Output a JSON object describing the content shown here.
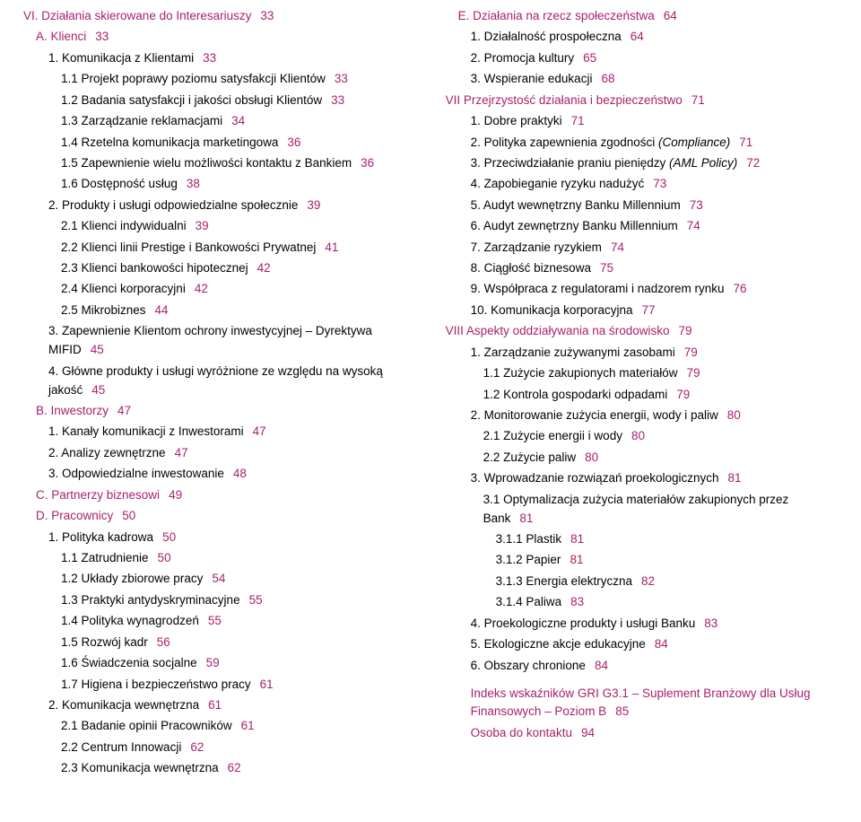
{
  "accentColor": "#a8216f",
  "left": [
    {
      "lvl": 0,
      "accent": true,
      "text": "VI. Działania skierowane do Interesariuszy",
      "page": "33"
    },
    {
      "lvl": 1,
      "accent": true,
      "text": "A. Klienci",
      "page": "33"
    },
    {
      "lvl": 2,
      "text": "1. Komunikacja z Klientami",
      "page": "33"
    },
    {
      "lvl": 3,
      "text": "1.1 Projekt poprawy poziomu satysfakcji Klientów",
      "page": "33"
    },
    {
      "lvl": 3,
      "text": "1.2 Badania satysfakcji i jakości obsługi Klientów",
      "page": "33"
    },
    {
      "lvl": 3,
      "text": "1.3 Zarządzanie reklamacjami",
      "page": "34"
    },
    {
      "lvl": 3,
      "text": "1.4 Rzetelna komunikacja marketingowa",
      "page": "36"
    },
    {
      "lvl": 3,
      "text": "1.5 Zapewnienie wielu możliwości kontaktu z Bankiem",
      "page": "36"
    },
    {
      "lvl": 3,
      "text": "1.6 Dostępność usług",
      "page": "38"
    },
    {
      "lvl": 2,
      "text": "2. Produkty i usługi odpowiedzialne społecznie",
      "page": "39"
    },
    {
      "lvl": 3,
      "text": "2.1 Klienci indywidualni",
      "page": "39"
    },
    {
      "lvl": 3,
      "text": "2.2 Klienci linii Prestige i Bankowości Prywatnej",
      "page": "41"
    },
    {
      "lvl": 3,
      "text": "2.3 Klienci bankowości hipotecznej",
      "page": "42"
    },
    {
      "lvl": 3,
      "text": "2.4 Klienci korporacyjni",
      "page": "42"
    },
    {
      "lvl": 3,
      "text": "2.5 Mikrobiznes",
      "page": "44"
    },
    {
      "lvl": 2,
      "text": "3. Zapewnienie Klientom ochrony inwestycyjnej – Dyrektywa MIFID",
      "page": "45",
      "multiline": true
    },
    {
      "lvl": 2,
      "text": "4. Główne produkty i usługi wyróżnione ze względu na wysoką jakość",
      "page": "45",
      "multiline": true
    },
    {
      "lvl": 1,
      "accent": true,
      "text": "B. Inwestorzy",
      "page": "47"
    },
    {
      "lvl": 2,
      "text": "1. Kanały komunikacji z Inwestorami",
      "page": "47"
    },
    {
      "lvl": 2,
      "text": "2. Analizy zewnętrzne",
      "page": "47"
    },
    {
      "lvl": 2,
      "text": "3. Odpowiedzialne inwestowanie",
      "page": "48"
    },
    {
      "lvl": 1,
      "accent": true,
      "text": "C. Partnerzy biznesowi",
      "page": "49"
    },
    {
      "lvl": 1,
      "accent": true,
      "text": "D. Pracownicy",
      "page": "50"
    },
    {
      "lvl": 2,
      "text": "1. Polityka kadrowa",
      "page": "50"
    },
    {
      "lvl": 3,
      "text": "1.1 Zatrudnienie",
      "page": "50"
    },
    {
      "lvl": 3,
      "text": "1.2 Układy zbiorowe pracy",
      "page": "54"
    },
    {
      "lvl": 3,
      "text": "1.3 Praktyki antydyskryminacyjne",
      "page": "55"
    },
    {
      "lvl": 3,
      "text": "1.4 Polityka wynagrodzeń",
      "page": "55"
    },
    {
      "lvl": 3,
      "text": "1.5 Rozwój kadr",
      "page": "56"
    },
    {
      "lvl": 3,
      "text": "1.6 Świadczenia socjalne",
      "page": "59"
    },
    {
      "lvl": 3,
      "text": "1.7 Higiena i bezpieczeństwo pracy",
      "page": "61"
    },
    {
      "lvl": 2,
      "text": "2. Komunikacja wewnętrzna",
      "page": "61"
    },
    {
      "lvl": 3,
      "text": "2.1 Badanie opinii Pracowników",
      "page": "61"
    },
    {
      "lvl": 3,
      "text": "2.2 Centrum Innowacji",
      "page": "62"
    },
    {
      "lvl": 3,
      "text": "2.3 Komunikacja wewnętrzna",
      "page": "62"
    }
  ],
  "right": [
    {
      "lvl": 1,
      "accent": true,
      "text": "E. Działania na rzecz społeczeństwa",
      "page": "64"
    },
    {
      "lvl": 2,
      "text": "1. Działalność prospołeczna",
      "page": "64"
    },
    {
      "lvl": 2,
      "text": "2. Promocja kultury",
      "page": "65"
    },
    {
      "lvl": 2,
      "text": "3. Wspieranie edukacji",
      "page": "68"
    },
    {
      "lvl": 0,
      "accent": true,
      "text": "VII Przejrzystość działania i bezpieczeństwo",
      "page": "71"
    },
    {
      "lvl": 2,
      "text": "1. Dobre praktyki",
      "page": "71"
    },
    {
      "lvl": 2,
      "text": "2. Polityka zapewnienia zgodności (Compliance)",
      "page": "71",
      "italicPart": "(Compliance)"
    },
    {
      "lvl": 2,
      "text": "3. Przeciwdziałanie praniu pieniędzy (AML Policy)",
      "page": "72",
      "italicPart": "(AML Policy)"
    },
    {
      "lvl": 2,
      "text": "4. Zapobieganie ryzyku nadużyć",
      "page": "73"
    },
    {
      "lvl": 2,
      "text": "5. Audyt wewnętrzny Banku Millennium",
      "page": "73"
    },
    {
      "lvl": 2,
      "text": "6. Audyt zewnętrzny Banku Millennium",
      "page": "74"
    },
    {
      "lvl": 2,
      "text": "7. Zarządzanie ryzykiem",
      "page": "74"
    },
    {
      "lvl": 2,
      "text": "8. Ciągłość biznesowa",
      "page": "75"
    },
    {
      "lvl": 2,
      "text": "9. Współpraca z regulatorami i nadzorem rynku",
      "page": "76"
    },
    {
      "lvl": 2,
      "text": "10. Komunikacja korporacyjna",
      "page": "77"
    },
    {
      "lvl": 0,
      "accent": true,
      "text": "VIII Aspekty oddziaływania na środowisko",
      "page": "79"
    },
    {
      "lvl": 2,
      "text": "1. Zarządzanie zużywanymi zasobami",
      "page": "79"
    },
    {
      "lvl": 3,
      "text": "1.1 Zużycie zakupionych materiałów",
      "page": "79"
    },
    {
      "lvl": 3,
      "text": "1.2 Kontrola gospodarki odpadami",
      "page": "79"
    },
    {
      "lvl": 2,
      "text": "2. Monitorowanie zużycia energii, wody i paliw",
      "page": "80"
    },
    {
      "lvl": 3,
      "text": "2.1 Zużycie energii i wody",
      "page": "80"
    },
    {
      "lvl": 3,
      "text": "2.2 Zużycie paliw",
      "page": "80"
    },
    {
      "lvl": 2,
      "text": "3. Wprowadzanie rozwiązań proekologicznych",
      "page": "81"
    },
    {
      "lvl": 3,
      "text": "3.1 Optymalizacja zużycia materiałów zakupionych przez Bank",
      "page": "81",
      "multiline": true
    },
    {
      "lvl": 4,
      "text": "3.1.1 Plastik",
      "page": "81"
    },
    {
      "lvl": 4,
      "text": "3.1.2 Papier",
      "page": "81"
    },
    {
      "lvl": 4,
      "text": "3.1.3 Energia elektryczna",
      "page": "82"
    },
    {
      "lvl": 4,
      "text": "3.1.4 Paliwa",
      "page": "83"
    },
    {
      "lvl": 2,
      "text": "4. Proekologiczne produkty i usługi Banku",
      "page": "83"
    },
    {
      "lvl": 2,
      "text": "5. Ekologiczne akcje edukacyjne",
      "page": "84"
    },
    {
      "lvl": 2,
      "text": "6. Obszary chronione",
      "page": "84"
    },
    {
      "lvl": 2,
      "accent": true,
      "gapTop": true,
      "text": "Indeks wskaźników GRI G3.1 – Suplement Branżowy dla Usług Finansowych – Poziom B",
      "page": "85",
      "multiline": true
    },
    {
      "lvl": 2,
      "accent": true,
      "text": "Osoba do kontaktu",
      "page": "94"
    }
  ]
}
